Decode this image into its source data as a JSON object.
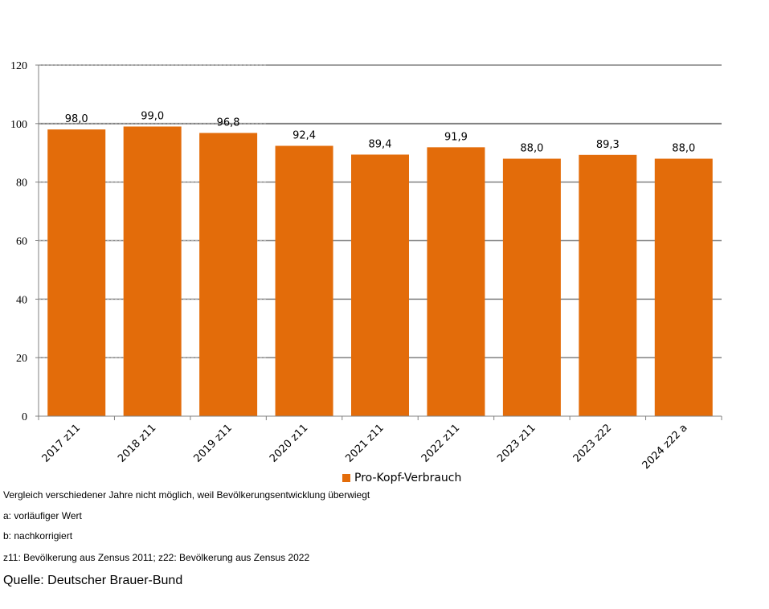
{
  "chart_data": {
    "type": "bar",
    "categories": [
      "2017 z11",
      "2018 z11",
      "2019 z11",
      "2020 z11",
      "2021 z11",
      "2022 z11",
      "2023 z11",
      "2023 z22",
      "2024 z22  a"
    ],
    "series": [
      {
        "name": "Pro-Kopf-Verbrauch",
        "values": [
          98.0,
          99.0,
          96.8,
          92.4,
          89.4,
          91.9,
          88.0,
          89.3,
          88.0
        ],
        "labels": [
          "98,0",
          "99,0",
          "96,8",
          "92,4",
          "89,4",
          "91,9",
          "88,0",
          "89,3",
          "88,0"
        ],
        "color": "#E36C0A"
      }
    ],
    "ylim": [
      0,
      120
    ],
    "yticks": [
      0,
      20,
      40,
      60,
      80,
      100,
      120
    ],
    "grid": true,
    "legend_position": "bottom"
  },
  "notes": [
    "Vergleich  verschiedener Jahre nicht möglich, weil Bevölkerungsentwicklung überwiegt",
    "a: vorläufiger Wert",
    "b: nachkorrigiert",
    "z11: Bevölkerung aus Zensus 2011; z22: Bevölkerung aus Zensus 2022"
  ],
  "source": "Quelle: Deutscher Brauer-Bund"
}
